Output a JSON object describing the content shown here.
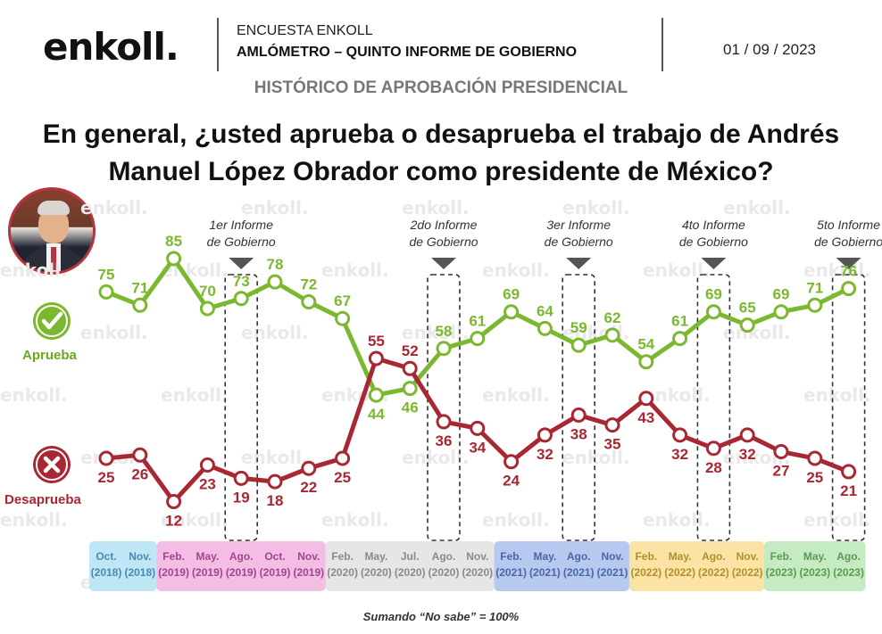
{
  "header": {
    "logo": "enkoll.",
    "survey_label": "ENCUESTA ENKOLL",
    "survey_title": "AMLÓMETRO – QUINTO INFORME DE GOBIERNO",
    "date": "01 / 09 / 2023",
    "subtitle": "HISTÓRICO DE APROBACIÓN PRESIDENCIAL",
    "question_line1": "En general, ¿usted aprueba o desaprueba el trabajo de Andrés",
    "question_line2": "Manuel López Obrador como presidente de México?"
  },
  "legend": {
    "approve": "Aprueba",
    "disapprove": "Desaprueba",
    "approve_icon": "check-icon",
    "disapprove_icon": "x-icon"
  },
  "watermark": "enkoll.",
  "footnote": "Sumando “No sabe” = 100%",
  "chart_data": {
    "type": "line",
    "categories": [
      {
        "month": "Oct.",
        "year": "(2018)"
      },
      {
        "month": "Nov.",
        "year": "(2018)"
      },
      {
        "month": "Feb.",
        "year": "(2019)"
      },
      {
        "month": "May.",
        "year": "(2019)"
      },
      {
        "month": "Ago.",
        "year": "(2019)"
      },
      {
        "month": "Oct.",
        "year": "(2019)"
      },
      {
        "month": "Nov.",
        "year": "(2019)"
      },
      {
        "month": "Feb.",
        "year": "(2020)"
      },
      {
        "month": "May.",
        "year": "(2020)"
      },
      {
        "month": "Jul.",
        "year": "(2020)"
      },
      {
        "month": "Ago.",
        "year": "(2020)"
      },
      {
        "month": "Nov.",
        "year": "(2020)"
      },
      {
        "month": "Feb.",
        "year": "(2021)"
      },
      {
        "month": "May.",
        "year": "(2021)"
      },
      {
        "month": "Ago.",
        "year": "(2021)"
      },
      {
        "month": "Nov.",
        "year": "(2021)"
      },
      {
        "month": "Feb.",
        "year": "(2022)"
      },
      {
        "month": "May.",
        "year": "(2022)"
      },
      {
        "month": "Ago.",
        "year": "(2022)"
      },
      {
        "month": "Nov.",
        "year": "(2022)"
      },
      {
        "month": "Feb.",
        "year": "(2023)"
      },
      {
        "month": "May.",
        "year": "(2023)"
      },
      {
        "month": "Ago.",
        "year": "(2023)"
      }
    ],
    "series": [
      {
        "name": "Aprueba",
        "color": "#7cb82f",
        "values": [
          75,
          71,
          85,
          70,
          73,
          78,
          72,
          67,
          44,
          46,
          58,
          61,
          69,
          64,
          59,
          62,
          54,
          61,
          69,
          65,
          69,
          71,
          76
        ]
      },
      {
        "name": "Desaprueba",
        "color": "#a82732",
        "values": [
          25,
          26,
          12,
          23,
          19,
          18,
          22,
          25,
          55,
          52,
          36,
          34,
          24,
          32,
          38,
          35,
          43,
          32,
          28,
          32,
          27,
          25,
          21
        ]
      }
    ],
    "highlights": [
      {
        "index": 4,
        "line1": "1er Informe",
        "line2": "de Gobierno"
      },
      {
        "index": 10,
        "line1": "2do Informe",
        "line2": "de Gobierno"
      },
      {
        "index": 14,
        "line1": "3er Informe",
        "line2": "de Gobierno"
      },
      {
        "index": 18,
        "line1": "4to Informe",
        "line2": "de Gobierno"
      },
      {
        "index": 22,
        "line1": "5to Informe",
        "line2": "de Gobierno"
      }
    ],
    "year_groups": [
      {
        "start": 0,
        "end": 1,
        "fill": "#bfe6f5",
        "text": "#4a88b5"
      },
      {
        "start": 2,
        "end": 6,
        "fill": "#f4bde4",
        "text": "#a04590"
      },
      {
        "start": 7,
        "end": 11,
        "fill": "#e6e6e6",
        "text": "#8a8a8a"
      },
      {
        "start": 12,
        "end": 15,
        "fill": "#b7c9ee",
        "text": "#4a66a8"
      },
      {
        "start": 16,
        "end": 19,
        "fill": "#fbe3a6",
        "text": "#b0902a"
      },
      {
        "start": 20,
        "end": 22,
        "fill": "#c6ebc2",
        "text": "#5a9a55"
      }
    ]
  }
}
